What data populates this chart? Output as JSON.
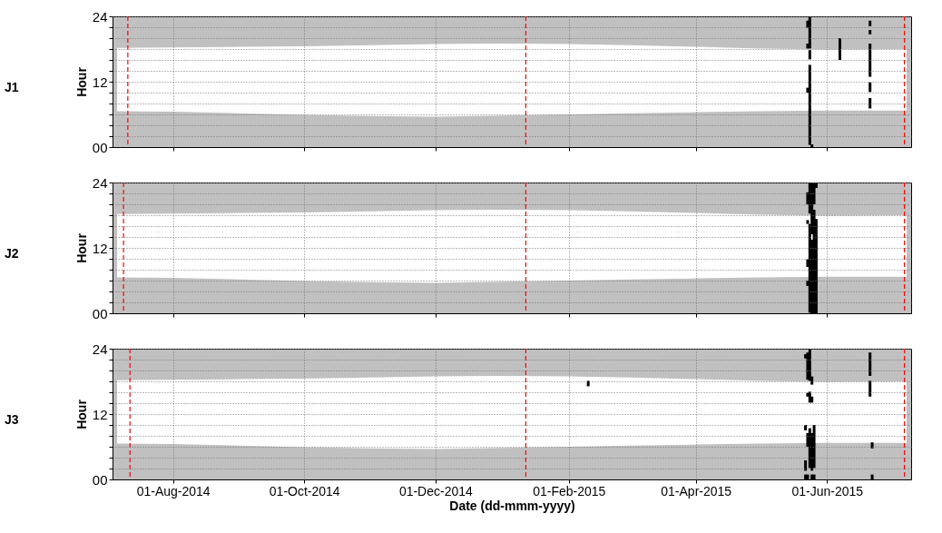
{
  "chart_data": [
    {
      "type": "area",
      "title": "J1",
      "ylabel": "Hour",
      "grid": true,
      "tick_labels": "y",
      "xlim": [
        "2014-07-06",
        "2015-07-08"
      ],
      "xticks": [
        {
          "value": "2014-08-01",
          "label": null
        },
        {
          "value": "2014-10-01",
          "label": null
        },
        {
          "value": "2014-12-01",
          "label": null
        },
        {
          "value": "2015-02-01",
          "label": null
        },
        {
          "value": "2015-04-01",
          "label": null
        },
        {
          "value": "2015-06-01",
          "label": null
        }
      ],
      "ylim": [
        0,
        24
      ],
      "yticks": [
        {
          "value": 0,
          "label": "00"
        },
        {
          "value": 2,
          "label": null
        },
        {
          "value": 4,
          "label": null
        },
        {
          "value": 6,
          "label": null
        },
        {
          "value": 8,
          "label": null
        },
        {
          "value": 10,
          "label": null
        },
        {
          "value": 12,
          "label": "12"
        },
        {
          "value": 14,
          "label": null
        },
        {
          "value": 16,
          "label": null
        },
        {
          "value": 18,
          "label": null
        },
        {
          "value": 20,
          "label": null
        },
        {
          "value": 22,
          "label": null
        },
        {
          "value": 24,
          "label": "24"
        }
      ],
      "ref_lines": [
        {
          "axis": "x",
          "value": "2014-07-11",
          "color": "#ff0000",
          "line_style": "dashed"
        },
        {
          "axis": "x",
          "value": "2015-01-12",
          "color": "#ff0000",
          "line_style": "dashed"
        },
        {
          "axis": "x",
          "value": "2015-07-07",
          "color": "#ff0000",
          "line_style": "dashed"
        }
      ],
      "series": [
        {
          "color": "#ffffff",
          "x": [
            "2014-07-06",
            "2014-08-01",
            "2014-09-01",
            "2014-10-01",
            "2014-11-01",
            "2014-12-01",
            "2015-01-01",
            "2015-02-01",
            "2015-03-01",
            "2015-04-01",
            "2015-05-01",
            "2015-06-01",
            "2015-07-08"
          ],
          "values": [
            18.2,
            18.3,
            18.4,
            18.5,
            18.7,
            18.9,
            19.0,
            18.9,
            18.7,
            18.4,
            18.1,
            17.9,
            18.0
          ]
        },
        {
          "color": "#c0c0c0",
          "x": [
            "2014-07-06",
            "2014-08-01",
            "2014-09-01",
            "2014-10-01",
            "2014-11-01",
            "2014-12-01",
            "2015-01-01",
            "2015-02-01",
            "2015-03-01",
            "2015-04-01",
            "2015-05-01",
            "2015-06-01",
            "2015-07-08"
          ],
          "values": [
            6.6,
            6.5,
            6.2,
            5.9,
            5.7,
            5.6,
            5.8,
            6.0,
            6.2,
            6.4,
            6.6,
            6.7,
            6.7
          ]
        },
        {
          "type": "bar",
          "color": "#000000",
          "x": [
            "2015-05-23",
            "2015-05-24",
            "2015-05-25",
            "2015-06-07",
            "2015-06-21"
          ],
          "base": [
            10.0,
            0.4,
            0,
            16.0,
            7.1
          ],
          "values": [
            0.9,
            14.7,
            0.5,
            4.0,
            1.9
          ]
        },
        {
          "type": "bar",
          "color": "#000000",
          "x": [
            "2015-05-23",
            "2015-05-24",
            "2015-06-21"
          ],
          "base": [
            18.1,
            16.1,
            10.1
          ],
          "values": [
            0.9,
            1.7,
            1.8
          ]
        },
        {
          "type": "bar",
          "color": "#000000",
          "x": [
            "2015-05-23",
            "2015-05-24",
            "2015-06-21"
          ],
          "base": [
            21.9,
            18.1,
            12.9
          ],
          "values": [
            1.3,
            5.9,
            6.1
          ]
        },
        {
          "type": "bar",
          "color": "#000000",
          "x": [
            "2015-06-21"
          ],
          "base": [
            20.7
          ],
          "values": [
            0.8
          ]
        },
        {
          "type": "bar",
          "color": "#000000",
          "x": [
            "2015-06-21"
          ],
          "base": [
            22.2
          ],
          "values": [
            1.0
          ]
        }
      ]
    },
    {
      "type": "area",
      "title": "J2",
      "ylabel": "Hour",
      "grid": true,
      "tick_labels": "y",
      "xlim": [
        "2014-07-06",
        "2015-07-08"
      ],
      "xticks": [
        {
          "value": "2014-08-01",
          "label": null
        },
        {
          "value": "2014-10-01",
          "label": null
        },
        {
          "value": "2014-12-01",
          "label": null
        },
        {
          "value": "2015-02-01",
          "label": null
        },
        {
          "value": "2015-04-01",
          "label": null
        },
        {
          "value": "2015-06-01",
          "label": null
        }
      ],
      "ylim": [
        0,
        24
      ],
      "yticks": [
        {
          "value": 0,
          "label": "00"
        },
        {
          "value": 2,
          "label": null
        },
        {
          "value": 4,
          "label": null
        },
        {
          "value": 6,
          "label": null
        },
        {
          "value": 8,
          "label": null
        },
        {
          "value": 10,
          "label": null
        },
        {
          "value": 12,
          "label": "12"
        },
        {
          "value": 14,
          "label": null
        },
        {
          "value": 16,
          "label": null
        },
        {
          "value": 18,
          "label": null
        },
        {
          "value": 20,
          "label": null
        },
        {
          "value": 22,
          "label": null
        },
        {
          "value": 24,
          "label": "24"
        }
      ],
      "ref_lines": [
        {
          "axis": "x",
          "value": "2014-07-09",
          "color": "#ff0000",
          "line_style": "dashed"
        },
        {
          "axis": "x",
          "value": "2015-01-12",
          "color": "#ff0000",
          "line_style": "dashed"
        },
        {
          "axis": "x",
          "value": "2015-07-07",
          "color": "#ff0000",
          "line_style": "dashed"
        }
      ],
      "series": [
        {
          "color": "#ffffff",
          "x": [
            "2014-07-06",
            "2014-08-01",
            "2014-09-01",
            "2014-10-01",
            "2014-11-01",
            "2014-12-01",
            "2015-01-01",
            "2015-02-01",
            "2015-03-01",
            "2015-04-01",
            "2015-05-01",
            "2015-06-01",
            "2015-07-08"
          ],
          "values": [
            18.2,
            18.3,
            18.4,
            18.5,
            18.7,
            18.9,
            19.0,
            18.9,
            18.7,
            18.4,
            18.1,
            17.9,
            18.0
          ]
        },
        {
          "color": "#c0c0c0",
          "x": [
            "2014-07-06",
            "2014-08-01",
            "2014-09-01",
            "2014-10-01",
            "2014-11-01",
            "2014-12-01",
            "2015-01-01",
            "2015-02-01",
            "2015-03-01",
            "2015-04-01",
            "2015-05-01",
            "2015-06-01",
            "2015-07-08"
          ],
          "values": [
            6.6,
            6.5,
            6.2,
            5.9,
            5.7,
            5.6,
            5.8,
            6.0,
            6.2,
            6.4,
            6.6,
            6.7,
            6.7
          ]
        },
        {
          "type": "bar",
          "color": "#000000",
          "x": [
            "2015-05-23",
            "2015-05-24",
            "2015-05-25",
            "2015-05-26",
            "2015-05-27"
          ],
          "base": [
            5.0,
            0.1,
            0,
            0,
            0
          ],
          "values": [
            1.0,
            16.3,
            13.5,
            19,
            17.3
          ]
        },
        {
          "type": "bar",
          "color": "#000000",
          "x": [
            "2015-05-23",
            "2015-05-24",
            "2015-05-25",
            "2015-05-26",
            "2015-05-27"
          ],
          "base": [
            8.5,
            18.3,
            14.5,
            20,
            23
          ],
          "values": [
            1.4,
            5.6,
            9.5,
            4,
            1
          ]
        },
        {
          "type": "bar",
          "color": "#000000",
          "x": [
            "2015-05-23"
          ],
          "base": [
            16.4
          ],
          "values": [
            0.7
          ]
        },
        {
          "type": "bar",
          "color": "#000000",
          "x": [
            "2015-05-23"
          ],
          "base": [
            20.0
          ],
          "values": [
            2.2
          ]
        }
      ]
    },
    {
      "type": "area",
      "title": "J3",
      "ylabel": "Hour",
      "xlabel": "Date (dd-mmm-yyyy)",
      "grid": true,
      "xlim": [
        "2014-07-06",
        "2015-07-08"
      ],
      "xticks": [
        {
          "value": "2014-08-01",
          "label": "01-Aug-2014"
        },
        {
          "value": "2014-10-01",
          "label": "01-Oct-2014"
        },
        {
          "value": "2014-12-01",
          "label": "01-Dec-2014"
        },
        {
          "value": "2015-02-01",
          "label": "01-Feb-2015"
        },
        {
          "value": "2015-04-01",
          "label": "01-Apr-2015"
        },
        {
          "value": "2015-06-01",
          "label": "01-Jun-2015"
        }
      ],
      "ylim": [
        0,
        24
      ],
      "yticks": [
        {
          "value": 0,
          "label": "00"
        },
        {
          "value": 2,
          "label": null
        },
        {
          "value": 4,
          "label": null
        },
        {
          "value": 6,
          "label": null
        },
        {
          "value": 8,
          "label": null
        },
        {
          "value": 10,
          "label": null
        },
        {
          "value": 12,
          "label": "12"
        },
        {
          "value": 14,
          "label": null
        },
        {
          "value": 16,
          "label": null
        },
        {
          "value": 18,
          "label": null
        },
        {
          "value": 20,
          "label": null
        },
        {
          "value": 22,
          "label": null
        },
        {
          "value": 24,
          "label": "24"
        }
      ],
      "ref_lines": [
        {
          "axis": "x",
          "value": "2014-07-12",
          "color": "#ff0000",
          "line_style": "dashed"
        },
        {
          "axis": "x",
          "value": "2015-01-12",
          "color": "#ff0000",
          "line_style": "dashed"
        },
        {
          "axis": "x",
          "value": "2015-07-07",
          "color": "#ff0000",
          "line_style": "dashed"
        }
      ],
      "series": [
        {
          "color": "#ffffff",
          "x": [
            "2014-07-06",
            "2014-08-01",
            "2014-09-01",
            "2014-10-01",
            "2014-11-01",
            "2014-12-01",
            "2015-01-01",
            "2015-02-01",
            "2015-03-01",
            "2015-04-01",
            "2015-05-01",
            "2015-06-01",
            "2015-07-08"
          ],
          "values": [
            18.2,
            18.3,
            18.4,
            18.5,
            18.7,
            18.9,
            19.0,
            18.9,
            18.7,
            18.4,
            18.1,
            17.9,
            18.0
          ]
        },
        {
          "color": "#c0c0c0",
          "x": [
            "2014-07-06",
            "2014-08-01",
            "2014-09-01",
            "2014-10-01",
            "2014-11-01",
            "2014-12-01",
            "2015-01-01",
            "2015-02-01",
            "2015-03-01",
            "2015-04-01",
            "2015-05-01",
            "2015-06-01",
            "2015-07-08"
          ],
          "values": [
            6.6,
            6.5,
            6.2,
            5.9,
            5.7,
            5.6,
            5.8,
            6.0,
            6.2,
            6.4,
            6.6,
            6.7,
            6.7
          ]
        },
        {
          "type": "bar",
          "color": "#000000",
          "x": [
            "2015-02-10",
            "2015-05-22",
            "2015-05-23",
            "2015-05-24",
            "2015-05-25",
            "2015-05-26",
            "2015-06-21",
            "2015-06-22"
          ],
          "base": [
            17.1,
            0,
            0,
            2.1,
            0,
            0,
            15.2,
            0
          ],
          "values": [
            1.0,
            0.9,
            0.9,
            7.3,
            0.9,
            0.9,
            2.9,
            0.9
          ]
        },
        {
          "type": "bar",
          "color": "#000000",
          "x": [
            "2015-05-22",
            "2015-05-23",
            "2015-05-24",
            "2015-05-25",
            "2015-05-26",
            "2015-06-21",
            "2015-06-22"
          ],
          "base": [
            1.6,
            6.0,
            14.1,
            1.6,
            2.1,
            19.0,
            5.7
          ],
          "values": [
            1.9,
            2.5,
            2.0,
            6.9,
            7.9,
            4.3,
            1.1
          ]
        },
        {
          "type": "bar",
          "color": "#000000",
          "x": [
            "2015-05-22",
            "2015-05-23",
            "2015-05-24",
            "2015-05-25"
          ],
          "base": [
            9.0,
            15.2,
            18.1,
            14.1
          ],
          "values": [
            1.0,
            0.7,
            5.9,
            1.1
          ]
        },
        {
          "type": "bar",
          "color": "#000000",
          "x": [
            "2015-05-22",
            "2015-05-23",
            "2015-05-25"
          ],
          "base": [
            22.2,
            18.3,
            17.4
          ],
          "values": [
            0.8,
            5.0,
            1.5
          ]
        }
      ]
    }
  ]
}
